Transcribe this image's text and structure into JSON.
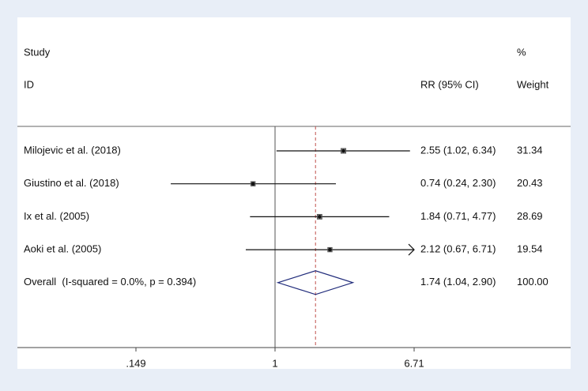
{
  "chart_data": {
    "type": "forest",
    "columns": {
      "study": "Study",
      "id": "ID",
      "effect": "RR (95% CI)",
      "percent": "%",
      "weight": "Weight"
    },
    "studies": [
      {
        "name": "Milojevic et al. (2018)",
        "rr": 2.55,
        "lower": 1.02,
        "upper": 6.34,
        "label": "2.55 (1.02, 6.34)",
        "weight": 31.34
      },
      {
        "name": "Giustino et al. (2018)",
        "rr": 0.74,
        "lower": 0.24,
        "upper": 2.3,
        "label": "0.74 (0.24, 2.30)",
        "weight": 20.43
      },
      {
        "name": "Ix et al. (2005)",
        "rr": 1.84,
        "lower": 0.71,
        "upper": 4.77,
        "label": "1.84 (0.71, 4.77)",
        "weight": 28.69
      },
      {
        "name": "Aoki et al. (2005)",
        "rr": 2.12,
        "lower": 0.67,
        "upper": 6.71,
        "label": "2.12 (0.67, 6.71)",
        "weight": 19.54
      }
    ],
    "overall": {
      "name": "Overall  (I-squared = 0.0%, p = 0.394)",
      "rr": 1.74,
      "lower": 1.04,
      "upper": 2.9,
      "label": "1.74 (1.04, 2.90)",
      "weight": 100,
      "weight_label": "100.00"
    },
    "xlim": [
      0.149,
      6.71
    ],
    "xticks": [
      {
        "value": 0.149,
        "label": ".149"
      },
      1,
      6.71
    ],
    "log_scale": true,
    "null_line": 1,
    "diamond_color": "#1f2a7a",
    "estimate_line_color": "#c0504d"
  }
}
